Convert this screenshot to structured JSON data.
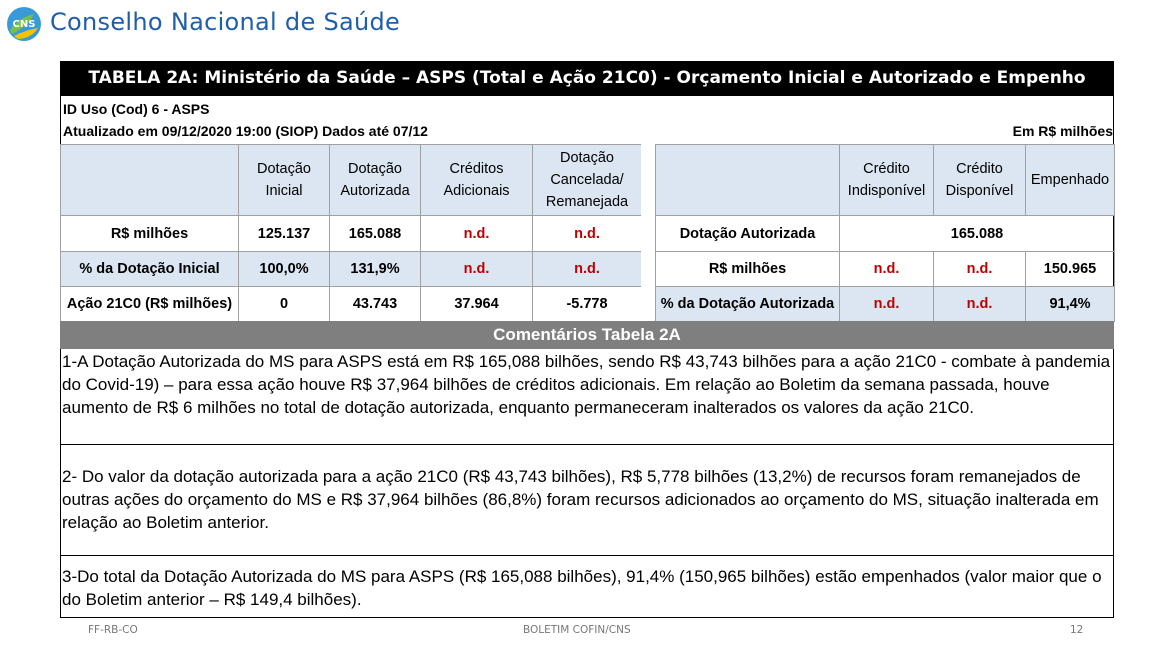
{
  "header": {
    "logo_text": "CNS",
    "org_name": "Conselho Nacional de Saúde"
  },
  "table": {
    "title": "TABELA 2A: Ministério da Saúde – ASPS (Total e Ação 21C0) - Orçamento Inicial e Autorizado e Empenho",
    "meta_line1": "ID Uso (Cod) 6 - ASPS",
    "meta_line2": "Atualizado em 09/12/2020 19:00 (SIOP) Dados até 07/12",
    "meta_unit": "Em R$ milhões",
    "left": {
      "headers": [
        "",
        "Dotação\nInicial",
        "Dotação\nAutorizada",
        "Créditos\nAdicionais",
        "Dotação\nCancelada/\nRemanejada"
      ],
      "rows": [
        [
          "R$ milhões",
          "125.137",
          "165.088",
          "n.d.",
          "n.d."
        ],
        [
          "% da Dotação Inicial",
          "100,0%",
          "131,9%",
          "n.d.",
          "n.d."
        ],
        [
          "Ação 21C0 (R$ milhões)",
          "0",
          "43.743",
          "37.964",
          "-5.778"
        ]
      ]
    },
    "right": {
      "headers": [
        "",
        "Crédito\nIndisponível",
        "Crédito\nDisponível",
        "Empenhado"
      ],
      "row1": {
        "label": "Dotação Autorizada",
        "value": "165.088"
      },
      "row2": [
        "R$ milhões",
        "n.d.",
        "n.d.",
        "150.965"
      ],
      "row3": [
        "% da Dotação Autorizada",
        "n.d.",
        "n.d.",
        "91,4%"
      ]
    }
  },
  "comments": {
    "title": "Comentários Tabela 2A",
    "items": [
      "1-A Dotação Autorizada do MS para ASPS está em R$ 165,088 bilhões, sendo R$ 43,743 bilhões para a ação 21C0 - combate à pandemia do Covid-19) – para essa ação houve R$ 37,964 bilhões de créditos adicionais. Em relação ao Boletim da semana passada, houve aumento de R$ 6 milhões no total de dotação autorizada, enquanto permaneceram inalterados os valores da ação 21C0.",
      "2- Do valor da dotação autorizada para a ação 21C0 (R$ 43,743 bilhões), R$ 5,778 bilhões (13,2%) de recursos foram remanejados de outras ações do orçamento do MS e R$ 37,964 bilhões (86,8%) foram recursos adicionados ao orçamento do MS, situação inalterada em relação ao Boletim anterior.",
      "3-Do total da Dotação Autorizada do MS para ASPS (R$ 165,088 bilhões), 91,4% (150,965 bilhões) estão empenhados (valor maior que o do Boletim anterior – R$ 149,4 bilhões)."
    ]
  },
  "footer": {
    "left": "FF-RB-CO",
    "center": "BOLETIM COFIN/CNS",
    "page": "12"
  }
}
